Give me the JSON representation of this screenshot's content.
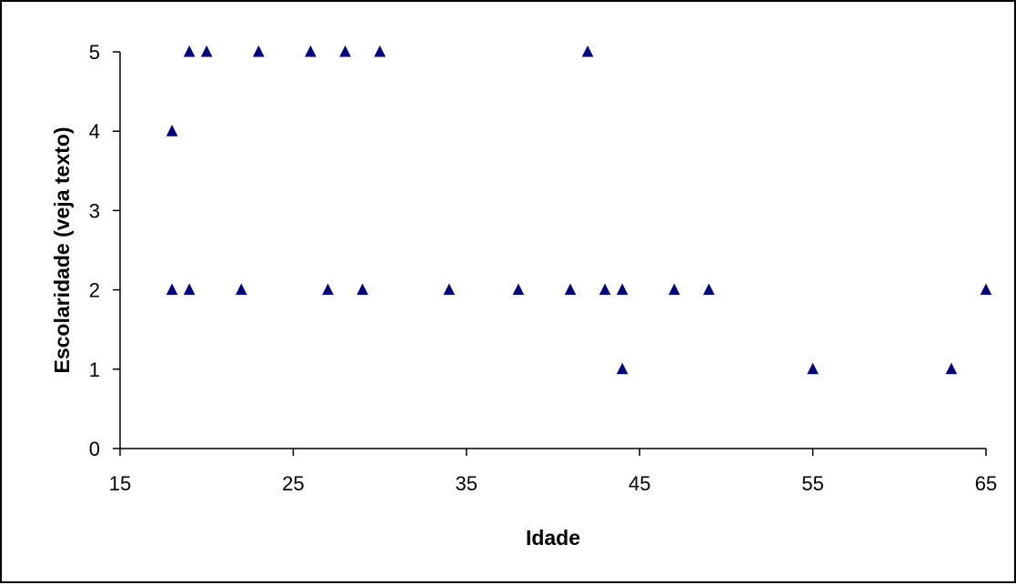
{
  "chart_data": {
    "type": "scatter",
    "title": "",
    "xlabel": "Idade",
    "ylabel": "Escolaridade (veja texto)",
    "xlim": [
      15,
      65
    ],
    "ylim": [
      0,
      5
    ],
    "xticks": [
      15,
      25,
      35,
      45,
      55,
      65
    ],
    "yticks": [
      0,
      1,
      2,
      3,
      4,
      5
    ],
    "grid": false,
    "legend": "none",
    "marker": "triangle",
    "marker_color": "#000080",
    "points": [
      {
        "x": 18,
        "y": 4
      },
      {
        "x": 19,
        "y": 5
      },
      {
        "x": 20,
        "y": 5
      },
      {
        "x": 23,
        "y": 5
      },
      {
        "x": 26,
        "y": 5
      },
      {
        "x": 28,
        "y": 5
      },
      {
        "x": 30,
        "y": 5
      },
      {
        "x": 42,
        "y": 5
      },
      {
        "x": 18,
        "y": 2
      },
      {
        "x": 19,
        "y": 2
      },
      {
        "x": 22,
        "y": 2
      },
      {
        "x": 27,
        "y": 2
      },
      {
        "x": 29,
        "y": 2
      },
      {
        "x": 34,
        "y": 2
      },
      {
        "x": 38,
        "y": 2
      },
      {
        "x": 41,
        "y": 2
      },
      {
        "x": 43,
        "y": 2
      },
      {
        "x": 44,
        "y": 2
      },
      {
        "x": 47,
        "y": 2
      },
      {
        "x": 49,
        "y": 2
      },
      {
        "x": 65,
        "y": 2
      },
      {
        "x": 44,
        "y": 1
      },
      {
        "x": 55,
        "y": 1
      },
      {
        "x": 63,
        "y": 1
      }
    ]
  }
}
